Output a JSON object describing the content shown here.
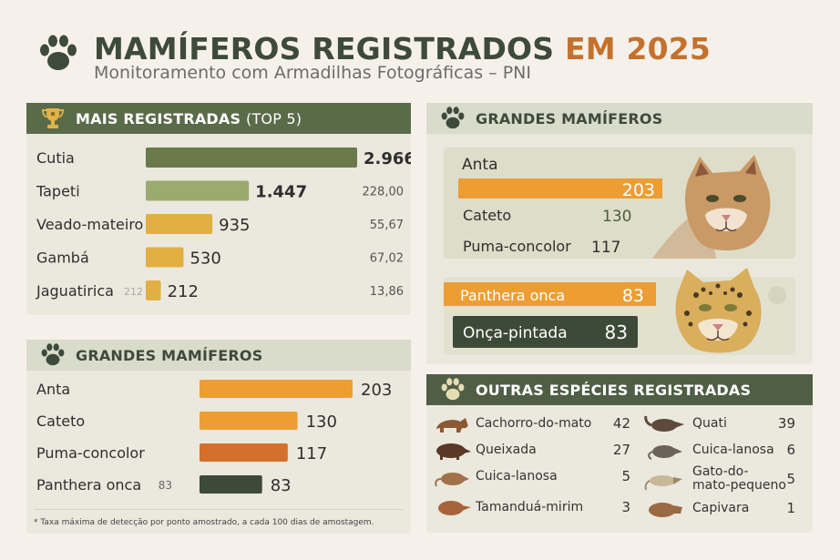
{
  "header": {
    "title_main": "MAMÍFEROS REGISTRADOS",
    "title_year": "EM 2025",
    "subtitle": "Monitoramento com Armadilhas Fotográficas – PNI"
  },
  "colors": {
    "dark_green": "#6a7a4b",
    "light_green": "#9aab6d",
    "yellow": "#e2b042",
    "orange": "#ec9e34",
    "rust": "#d46f2c",
    "deep_green": "#3e4a38"
  },
  "top5": {
    "title": "MAIS REGISTRADAS",
    "title_suffix": "(TOP 5)"
  },
  "large_left": {
    "title": "GRANDES MAMÍFEROS"
  },
  "large_right": {
    "title": "GRANDES MAMÍFEROS"
  },
  "others": {
    "title": "OUTRAS ESPÉCIES REGISTRADAS",
    "left": [
      {
        "name": "Cachorro-do-mato",
        "value": "42"
      },
      {
        "name": "Queixada",
        "value": "27"
      },
      {
        "name": "Cuica-lanosa",
        "value": "5"
      },
      {
        "name": "Tamanduá-mirim",
        "value": "3"
      }
    ],
    "right": [
      {
        "name": "Quati",
        "value": "39"
      },
      {
        "name": "Cuica-lanosa",
        "value": "6"
      },
      {
        "name": "Gato-do-\nmato-pequeno",
        "value": "5"
      },
      {
        "name": "Capivara",
        "value": "1"
      }
    ]
  },
  "footnote": "* Taxa máxima de detecção por ponto amostrado, a cada 100 dias de amostagem.",
  "chart_data": [
    {
      "type": "bar",
      "title": "MAIS REGISTRADAS (TOP 5)",
      "categories": [
        "Cutia",
        "Tapeti",
        "Veado-mateiro",
        "Gambá",
        "Jaguatirica"
      ],
      "values": [
        2966,
        1447,
        935,
        530,
        212
      ],
      "value_labels": [
        "2.966",
        "1.447",
        "935",
        "530",
        "212"
      ],
      "rates": [
        "",
        "228,00",
        "55,67",
        "67,02",
        "13,86"
      ],
      "ghost_labels": [
        "",
        "",
        "",
        "",
        "212"
      ],
      "bar_colors": [
        "#6a7a4b",
        "#9aab6d",
        "#e2b042",
        "#e2b042",
        "#e2b042"
      ]
    },
    {
      "type": "bar",
      "title": "GRANDES MAMÍFEROS",
      "categories": [
        "Anta",
        "Cateto",
        "Puma-concolor",
        "Panthera onca"
      ],
      "values": [
        203,
        130,
        117,
        83
      ],
      "value_labels": [
        "203",
        "130",
        "117",
        "83"
      ],
      "ghost_labels": [
        "",
        "",
        "",
        "83"
      ],
      "bar_colors": [
        "#ec9e34",
        "#ec9e34",
        "#d46f2c",
        "#3e4a38"
      ]
    },
    {
      "type": "bar",
      "title": "GRANDES MAMÍFEROS",
      "categories": [
        "Anta",
        "Cateto",
        "Puma-concolor"
      ],
      "values": [
        203,
        130,
        117
      ],
      "value_labels": [
        "203",
        "130",
        "117"
      ],
      "bar_colors": [
        "#ec9e34"
      ]
    },
    {
      "type": "bar",
      "categories": [
        "Panthera onca",
        "Onça-pintada"
      ],
      "values": [
        83,
        83
      ],
      "value_labels": [
        "83",
        "83"
      ],
      "bar_colors": [
        "#ec9e34",
        "#3e4a38"
      ]
    }
  ]
}
